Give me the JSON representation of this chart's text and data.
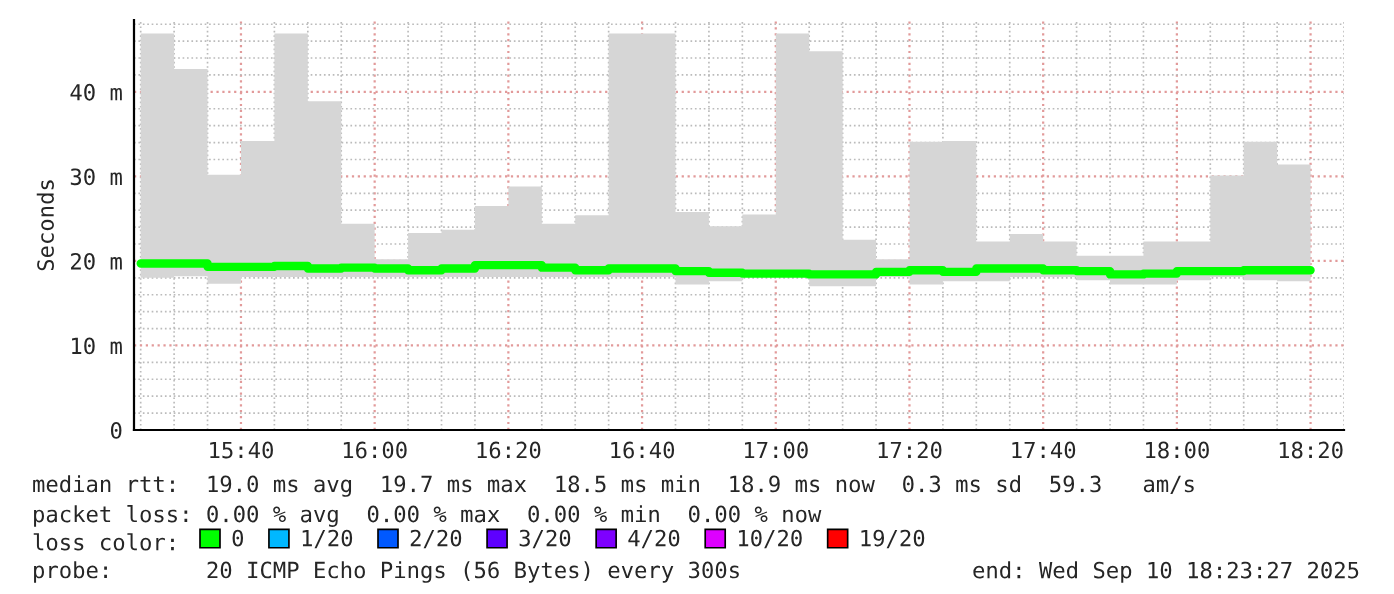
{
  "chart_data": {
    "type": "step",
    "ylabel": "Seconds",
    "x": [
      "2025-09-10T15:25",
      "2025-09-10T15:30",
      "2025-09-10T15:35",
      "2025-09-10T15:40",
      "2025-09-10T15:45",
      "2025-09-10T15:50",
      "2025-09-10T15:55",
      "2025-09-10T16:00",
      "2025-09-10T16:05",
      "2025-09-10T16:10",
      "2025-09-10T16:15",
      "2025-09-10T16:20",
      "2025-09-10T16:25",
      "2025-09-10T16:30",
      "2025-09-10T16:35",
      "2025-09-10T16:40",
      "2025-09-10T16:45",
      "2025-09-10T16:50",
      "2025-09-10T16:55",
      "2025-09-10T17:00",
      "2025-09-10T17:05",
      "2025-09-10T17:10",
      "2025-09-10T17:15",
      "2025-09-10T17:20",
      "2025-09-10T17:25",
      "2025-09-10T17:30",
      "2025-09-10T17:35",
      "2025-09-10T17:40",
      "2025-09-10T17:45",
      "2025-09-10T17:50",
      "2025-09-10T17:55",
      "2025-09-10T18:00",
      "2025-09-10T18:05",
      "2025-09-10T18:10",
      "2025-09-10T18:15",
      "2025-09-10T18:20"
    ],
    "series": [
      {
        "name": "0",
        "color": "#00ff00",
        "values": [
          19.7,
          19.7,
          19.3,
          19.3,
          19.4,
          19.1,
          19.2,
          19.1,
          18.9,
          19.1,
          19.5,
          19.5,
          19.2,
          18.9,
          19.1,
          19.1,
          18.8,
          18.6,
          18.5,
          18.5,
          18.4,
          18.4,
          18.7,
          18.9,
          18.7,
          19.1,
          19.1,
          18.9,
          18.8,
          18.4,
          18.5,
          18.8,
          18.8,
          18.9,
          18.9,
          18.9
        ],
        "lower": [
          18.0,
          18.2,
          17.3,
          18.1,
          18.1,
          18.1,
          18.1,
          18.1,
          18.1,
          18.1,
          18.1,
          18.1,
          18.1,
          18.1,
          18.1,
          18.1,
          17.2,
          17.6,
          18.1,
          18.1,
          17.0,
          17.0,
          18.1,
          17.2,
          17.6,
          17.6,
          18.1,
          18.1,
          17.7,
          17.2,
          17.2,
          17.7,
          18.1,
          17.7,
          17.6,
          17.6
        ],
        "upper": [
          46.9,
          42.7,
          30.2,
          34.2,
          46.9,
          38.9,
          24.4,
          20.2,
          23.3,
          23.7,
          26.5,
          28.8,
          24.4,
          25.4,
          46.9,
          46.9,
          25.8,
          24.1,
          25.5,
          46.9,
          44.8,
          22.5,
          20.2,
          34.1,
          34.2,
          22.3,
          23.2,
          22.3,
          20.6,
          20.6,
          22.3,
          22.3,
          30.1,
          34.1,
          31.4,
          31.4
        ]
      },
      {
        "name": "1/20",
        "color": "#00b8ff",
        "values": [
          null,
          null,
          null,
          null,
          null,
          null,
          null,
          null,
          null,
          null,
          null,
          null,
          null,
          null,
          null,
          null,
          null,
          null,
          null,
          null,
          null,
          null,
          null,
          null,
          null,
          null,
          null,
          null,
          null,
          null,
          null,
          null,
          null,
          null,
          null,
          null
        ]
      },
      {
        "name": "2/20",
        "color": "#0059ff",
        "values": [
          null,
          null,
          null,
          null,
          null,
          null,
          null,
          null,
          null,
          null,
          null,
          null,
          null,
          null,
          null,
          null,
          null,
          null,
          null,
          null,
          null,
          null,
          null,
          null,
          null,
          null,
          null,
          null,
          null,
          null,
          null,
          null,
          null,
          null,
          null,
          null
        ]
      },
      {
        "name": "3/20",
        "color": "#5e00ff",
        "values": [
          null,
          null,
          null,
          null,
          null,
          null,
          null,
          null,
          null,
          null,
          null,
          null,
          null,
          null,
          null,
          null,
          null,
          null,
          null,
          null,
          null,
          null,
          null,
          null,
          null,
          null,
          null,
          null,
          null,
          null,
          null,
          null,
          null,
          null,
          null,
          null
        ]
      },
      {
        "name": "4/20",
        "color": "#7e00ff",
        "values": [
          null,
          null,
          null,
          null,
          null,
          null,
          null,
          null,
          null,
          null,
          null,
          null,
          null,
          null,
          null,
          null,
          null,
          null,
          null,
          null,
          null,
          null,
          null,
          null,
          null,
          null,
          null,
          null,
          null,
          null,
          null,
          null,
          null,
          null,
          null,
          null
        ]
      },
      {
        "name": "10/20",
        "color": "#dd00ff",
        "values": [
          null,
          null,
          null,
          null,
          null,
          null,
          null,
          null,
          null,
          null,
          null,
          null,
          null,
          null,
          null,
          null,
          null,
          null,
          null,
          null,
          null,
          null,
          null,
          null,
          null,
          null,
          null,
          null,
          null,
          null,
          null,
          null,
          null,
          null,
          null,
          null
        ]
      },
      {
        "name": "19/20",
        "color": "#ff0000",
        "values": [
          null,
          null,
          null,
          null,
          null,
          null,
          null,
          null,
          null,
          null,
          null,
          null,
          null,
          null,
          null,
          null,
          null,
          null,
          null,
          null,
          null,
          null,
          null,
          null,
          null,
          null,
          null,
          null,
          null,
          null,
          null,
          null,
          null,
          null,
          null,
          null
        ]
      }
    ],
    "xlim": [
      "2025-09-10T15:24",
      "2025-09-10T18:25"
    ],
    "xticks": [
      {
        "value": "2025-09-10T15:40",
        "label": "15:40"
      },
      {
        "value": "2025-09-10T16:00",
        "label": "16:00"
      },
      {
        "value": "2025-09-10T16:20",
        "label": "16:20"
      },
      {
        "value": "2025-09-10T16:40",
        "label": "16:40"
      },
      {
        "value": "2025-09-10T17:00",
        "label": "17:00"
      },
      {
        "value": "2025-09-10T17:20",
        "label": "17:20"
      },
      {
        "value": "2025-09-10T17:40",
        "label": "17:40"
      },
      {
        "value": "2025-09-10T18:00",
        "label": "18:00"
      },
      {
        "value": "2025-09-10T18:20",
        "label": "18:20"
      }
    ],
    "ylim": [
      0,
      48.5
    ],
    "yticks": [
      0,
      {
        "value": 10,
        "label": "10 m"
      },
      {
        "value": 20,
        "label": "20 m"
      },
      {
        "value": 30,
        "label": "30 m"
      },
      {
        "value": 40,
        "label": "40 m"
      }
    ],
    "grid": true,
    "legend": "bottom",
    "line_style": "solid",
    "marker": "none",
    "annotations": [
      "median rtt:  19.0 ms avg  19.7 ms max  18.5 ms min  18.9 ms now  0.3 ms sd  59.3   am/s",
      "packet loss: 0.00 % avg  0.00 % max  0.00 % min  0.00 % now",
      "loss color:",
      "probe:       20 ICMP Echo Pings (56 Bytes) every 300s",
      "end: Wed Sep 10 18:23:27 2025"
    ]
  }
}
